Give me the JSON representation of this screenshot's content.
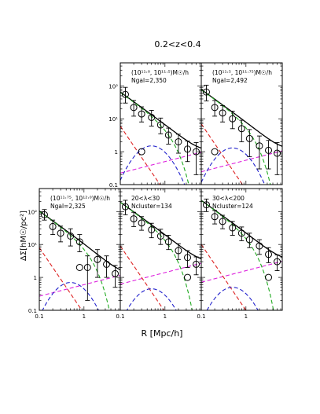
{
  "figure": {
    "title": "0.2<z<0.4",
    "xlabel": "R [Mpc/h]",
    "ylabel": "ΔΣ[hM☉/pc²]"
  },
  "chart_data": {
    "type": "line",
    "x_scale": "log",
    "y_scale": "log",
    "xlim": [
      0.1,
      6.5
    ],
    "ylim": [
      0.1,
      500
    ],
    "x_tick_labels": [
      "0.1",
      "1"
    ],
    "y_tick_labels": [
      "0.1",
      "1",
      "10¹",
      "10²"
    ],
    "component_curves": [
      {
        "name": "total",
        "color": "#000000",
        "dash": "solid"
      },
      {
        "name": "1-halo",
        "color": "#22aa22",
        "dash": "dashed"
      },
      {
        "name": "2-halo",
        "color": "#dd22dd",
        "dash": "dashed"
      },
      {
        "name": "stellar",
        "color": "#dd2222",
        "dash": "dashed"
      },
      {
        "name": "offset",
        "color": "#2222cc",
        "dash": "dashed"
      }
    ],
    "panels": [
      {
        "id": "top-middle",
        "label_lines": [
          "(10¹¹·⁰, 10¹¹·⁵)M☉/h",
          "Ngal=2,350"
        ],
        "x": [
          0.13,
          0.2,
          0.3,
          0.5,
          0.8,
          1.2,
          2.0,
          3.2,
          5.0
        ],
        "y": [
          55,
          22,
          14,
          11,
          6.5,
          3.2,
          2.0,
          1.2,
          1.0
        ],
        "err_lo": [
          25,
          10,
          6,
          5,
          3,
          1.5,
          1.1,
          0.7,
          0.8
        ],
        "err_hi": [
          35,
          14,
          9,
          7,
          4,
          2,
          1.4,
          0.9,
          0.9
        ],
        "hollow_point": {
          "x": 0.3,
          "y": 1.0
        },
        "amps": {
          "onehalo": 50,
          "twohalo": 0.5,
          "stellar": 6.0,
          "offset": 1.5
        }
      },
      {
        "id": "top-right",
        "label_lines": [
          "(10¹¹·⁵, 10¹¹·⁷⁵)M☉/h",
          "Ngal=2,492"
        ],
        "x": [
          0.13,
          0.2,
          0.3,
          0.5,
          0.8,
          1.2,
          2.0,
          3.2,
          5.0
        ],
        "y": [
          65,
          22,
          15,
          10,
          5,
          2.5,
          1.5,
          1.1,
          0.9
        ],
        "err_lo": [
          30,
          10,
          7,
          5,
          3,
          1.8,
          1.2,
          0.8,
          0.7
        ],
        "err_hi": [
          40,
          14,
          10,
          7,
          4,
          2.2,
          1.5,
          1.1,
          1.0
        ],
        "hollow_point": {
          "x": 0.2,
          "y": 1.0
        },
        "amps": {
          "onehalo": 60,
          "twohalo": 0.55,
          "stellar": 7.0,
          "offset": 1.3
        }
      },
      {
        "id": "bottom-left",
        "label_lines": [
          "(10¹¹·⁷⁵, 10¹²·⁰)M☉/h",
          "Ngal=2,325"
        ],
        "x": [
          0.13,
          0.2,
          0.3,
          0.5,
          0.8,
          1.2,
          2.0,
          3.2,
          5.0
        ],
        "y": [
          80,
          35,
          22,
          18,
          12,
          2.0,
          3.5,
          2.5,
          1.3
        ],
        "err_lo": [
          25,
          15,
          10,
          9,
          6,
          1.8,
          2.5,
          1.5,
          0.8
        ],
        "err_hi": [
          35,
          20,
          14,
          12,
          8,
          2.5,
          3.5,
          2.0,
          1.0
        ],
        "hollow_point": {
          "x": 0.8,
          "y": 2.0
        },
        "amps": {
          "onehalo": 80,
          "twohalo": 0.6,
          "stellar": 8.0,
          "offset": 0.7
        }
      },
      {
        "id": "bottom-middle",
        "label_lines": [
          "20<λ<30",
          "Ncluster=134"
        ],
        "x": [
          0.13,
          0.2,
          0.3,
          0.5,
          0.8,
          1.2,
          2.0,
          3.2,
          5.0
        ],
        "y": [
          140,
          60,
          45,
          28,
          18,
          12,
          6.5,
          4.0,
          2.5
        ],
        "err_lo": [
          60,
          25,
          18,
          12,
          8,
          5,
          3,
          2,
          1.3
        ],
        "err_hi": [
          80,
          35,
          25,
          16,
          11,
          7,
          4,
          2.5,
          1.7
        ],
        "hollow_point": {
          "x": 3.2,
          "y": 1.0
        },
        "amps": {
          "onehalo": 150,
          "twohalo": 1.4,
          "stellar": 9.0,
          "offset": 0.45
        }
      },
      {
        "id": "bottom-right",
        "label_lines": [
          "30<λ<200",
          "Ncluster=124"
        ],
        "x": [
          0.13,
          0.2,
          0.3,
          0.5,
          0.8,
          1.2,
          2.0,
          3.2,
          5.0
        ],
        "y": [
          160,
          70,
          50,
          32,
          22,
          14,
          9,
          5.0,
          3.0
        ],
        "err_lo": [
          60,
          28,
          20,
          13,
          9,
          6,
          4,
          2.2,
          1.4
        ],
        "err_hi": [
          80,
          38,
          27,
          18,
          12,
          8,
          5,
          3,
          1.8
        ],
        "hollow_point": {
          "x": 3.2,
          "y": 1.0
        },
        "amps": {
          "onehalo": 170,
          "twohalo": 1.6,
          "stellar": 10.0,
          "offset": 0.5
        }
      }
    ]
  }
}
